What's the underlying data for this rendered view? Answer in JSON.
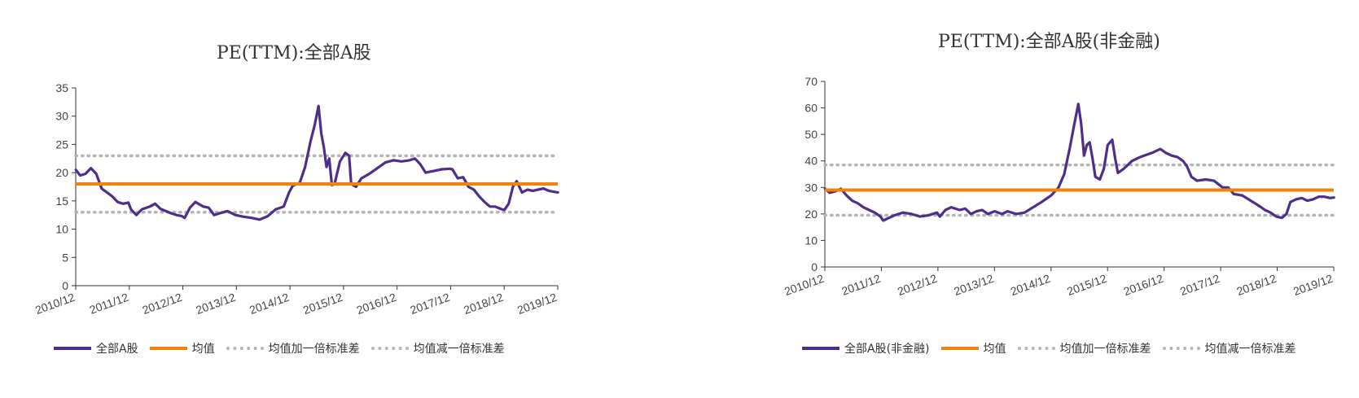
{
  "colors": {
    "series": "#4f2d8a",
    "mean": "#f0820f",
    "band": "#b4b4b4",
    "axis": "#333333"
  },
  "chart_data": [
    {
      "type": "line",
      "title": "PE(TTM):全部A股",
      "x_categories": [
        "2010/12",
        "2011/12",
        "2012/12",
        "2013/12",
        "2014/12",
        "2015/12",
        "2016/12",
        "2017/12",
        "2018/12",
        "2019/12"
      ],
      "x_range": [
        2010.917,
        2019.917
      ],
      "ylim": [
        0,
        35
      ],
      "yticks": [
        "0",
        "5",
        "10",
        "15",
        "20",
        "25",
        "30",
        "35"
      ],
      "mean": 18,
      "upper_band": 23,
      "lower_band": 13,
      "legend": [
        "全部A股",
        "均值",
        "均值加一倍标准差",
        "均值减一倍标准差"
      ],
      "series": [
        {
          "name": "全部A股",
          "points": [
            [
              2010.92,
              20.5
            ],
            [
              2011.0,
              19.5
            ],
            [
              2011.1,
              19.8
            ],
            [
              2011.2,
              20.8
            ],
            [
              2011.3,
              19.8
            ],
            [
              2011.4,
              17.2
            ],
            [
              2011.5,
              16.5
            ],
            [
              2011.6,
              15.8
            ],
            [
              2011.7,
              14.8
            ],
            [
              2011.8,
              14.5
            ],
            [
              2011.9,
              14.7
            ],
            [
              2011.95,
              13.5
            ],
            [
              2012.05,
              12.5
            ],
            [
              2012.15,
              13.5
            ],
            [
              2012.3,
              14.0
            ],
            [
              2012.4,
              14.5
            ],
            [
              2012.5,
              13.6
            ],
            [
              2012.6,
              13.2
            ],
            [
              2012.7,
              12.8
            ],
            [
              2012.8,
              12.5
            ],
            [
              2012.9,
              12.3
            ],
            [
              2012.95,
              12.0
            ],
            [
              2013.05,
              13.8
            ],
            [
              2013.15,
              14.8
            ],
            [
              2013.3,
              14.0
            ],
            [
              2013.4,
              13.8
            ],
            [
              2013.5,
              12.5
            ],
            [
              2013.6,
              12.8
            ],
            [
              2013.75,
              13.2
            ],
            [
              2013.9,
              12.5
            ],
            [
              2014.05,
              12.2
            ],
            [
              2014.2,
              12.0
            ],
            [
              2014.35,
              11.7
            ],
            [
              2014.5,
              12.3
            ],
            [
              2014.65,
              13.5
            ],
            [
              2014.8,
              14.0
            ],
            [
              2014.9,
              16.5
            ],
            [
              2014.97,
              17.7
            ],
            [
              2015.1,
              18.2
            ],
            [
              2015.2,
              21.0
            ],
            [
              2015.3,
              25.5
            ],
            [
              2015.38,
              28.5
            ],
            [
              2015.45,
              31.8
            ],
            [
              2015.5,
              27.0
            ],
            [
              2015.55,
              24.5
            ],
            [
              2015.6,
              21.0
            ],
            [
              2015.65,
              22.5
            ],
            [
              2015.7,
              17.8
            ],
            [
              2015.75,
              18.0
            ],
            [
              2015.85,
              22.0
            ],
            [
              2015.95,
              23.5
            ],
            [
              2016.02,
              23.0
            ],
            [
              2016.06,
              18.0
            ],
            [
              2016.15,
              17.5
            ],
            [
              2016.25,
              19.0
            ],
            [
              2016.4,
              19.8
            ],
            [
              2016.55,
              20.8
            ],
            [
              2016.7,
              21.8
            ],
            [
              2016.85,
              22.2
            ],
            [
              2017.0,
              22.0
            ],
            [
              2017.15,
              22.2
            ],
            [
              2017.25,
              22.5
            ],
            [
              2017.35,
              21.5
            ],
            [
              2017.45,
              20.0
            ],
            [
              2017.6,
              20.3
            ],
            [
              2017.75,
              20.6
            ],
            [
              2017.9,
              20.7
            ],
            [
              2017.95,
              20.6
            ],
            [
              2018.05,
              19.0
            ],
            [
              2018.15,
              19.2
            ],
            [
              2018.25,
              17.5
            ],
            [
              2018.35,
              17.0
            ],
            [
              2018.45,
              15.8
            ],
            [
              2018.55,
              14.8
            ],
            [
              2018.65,
              14.0
            ],
            [
              2018.75,
              14.0
            ],
            [
              2018.85,
              13.6
            ],
            [
              2018.92,
              13.4
            ],
            [
              2019.0,
              14.5
            ],
            [
              2019.08,
              17.5
            ],
            [
              2019.15,
              18.5
            ],
            [
              2019.25,
              16.5
            ],
            [
              2019.35,
              17.0
            ],
            [
              2019.45,
              16.8
            ],
            [
              2019.55,
              17.0
            ],
            [
              2019.65,
              17.2
            ],
            [
              2019.75,
              16.8
            ],
            [
              2019.85,
              16.6
            ],
            [
              2019.92,
              16.5
            ]
          ]
        }
      ]
    },
    {
      "type": "line",
      "title": "PE(TTM):全部A股(非金融)",
      "x_categories": [
        "2010/12",
        "2011/12",
        "2012/12",
        "2013/12",
        "2014/12",
        "2015/12",
        "2016/12",
        "2017/12",
        "2018/12",
        "2019/12"
      ],
      "x_range": [
        2010.917,
        2019.917
      ],
      "ylim": [
        0,
        70
      ],
      "yticks": [
        "0",
        "10",
        "20",
        "30",
        "40",
        "50",
        "60",
        "70"
      ],
      "mean": 29,
      "upper_band": 38.5,
      "lower_band": 19.5,
      "legend": [
        "全部A股(非金融)",
        "均值",
        "均值加一倍标准差",
        "均值减一倍标准差"
      ],
      "series": [
        {
          "name": "全部A股(非金融)",
          "points": [
            [
              2010.92,
              29.5
            ],
            [
              2011.0,
              28.0
            ],
            [
              2011.1,
              28.5
            ],
            [
              2011.2,
              29.5
            ],
            [
              2011.3,
              27.0
            ],
            [
              2011.4,
              25.0
            ],
            [
              2011.5,
              24.0
            ],
            [
              2011.6,
              22.5
            ],
            [
              2011.7,
              21.5
            ],
            [
              2011.8,
              20.5
            ],
            [
              2011.9,
              19.0
            ],
            [
              2011.95,
              17.5
            ],
            [
              2012.05,
              18.5
            ],
            [
              2012.15,
              19.5
            ],
            [
              2012.3,
              20.5
            ],
            [
              2012.45,
              20.0
            ],
            [
              2012.6,
              19.0
            ],
            [
              2012.75,
              19.5
            ],
            [
              2012.9,
              20.5
            ],
            [
              2012.95,
              19.0
            ],
            [
              2013.05,
              21.5
            ],
            [
              2013.15,
              22.5
            ],
            [
              2013.3,
              21.5
            ],
            [
              2013.4,
              22.0
            ],
            [
              2013.5,
              20.0
            ],
            [
              2013.6,
              21.0
            ],
            [
              2013.7,
              21.5
            ],
            [
              2013.8,
              20.0
            ],
            [
              2013.92,
              21.0
            ],
            [
              2014.05,
              20.0
            ],
            [
              2014.15,
              21.0
            ],
            [
              2014.3,
              20.0
            ],
            [
              2014.45,
              20.5
            ],
            [
              2014.6,
              22.5
            ],
            [
              2014.75,
              24.5
            ],
            [
              2014.92,
              27.0
            ],
            [
              2015.05,
              30.0
            ],
            [
              2015.15,
              35.0
            ],
            [
              2015.25,
              45.0
            ],
            [
              2015.32,
              53.0
            ],
            [
              2015.4,
              61.5
            ],
            [
              2015.45,
              54.0
            ],
            [
              2015.5,
              42.0
            ],
            [
              2015.55,
              46.0
            ],
            [
              2015.6,
              47.0
            ],
            [
              2015.65,
              41.0
            ],
            [
              2015.7,
              34.0
            ],
            [
              2015.78,
              33.0
            ],
            [
              2015.85,
              37.0
            ],
            [
              2015.92,
              46.0
            ],
            [
              2016.0,
              48.0
            ],
            [
              2016.05,
              41.0
            ],
            [
              2016.1,
              35.5
            ],
            [
              2016.2,
              37.0
            ],
            [
              2016.35,
              40.0
            ],
            [
              2016.5,
              41.5
            ],
            [
              2016.7,
              43.0
            ],
            [
              2016.85,
              44.5
            ],
            [
              2016.95,
              43.0
            ],
            [
              2017.05,
              42.0
            ],
            [
              2017.15,
              41.5
            ],
            [
              2017.25,
              40.0
            ],
            [
              2017.32,
              38.0
            ],
            [
              2017.4,
              34.0
            ],
            [
              2017.5,
              32.5
            ],
            [
              2017.65,
              33.0
            ],
            [
              2017.8,
              32.5
            ],
            [
              2017.95,
              30.0
            ],
            [
              2018.05,
              30.0
            ],
            [
              2018.15,
              27.5
            ],
            [
              2018.3,
              27.0
            ],
            [
              2018.45,
              25.0
            ],
            [
              2018.6,
              23.0
            ],
            [
              2018.7,
              21.5
            ],
            [
              2018.8,
              20.5
            ],
            [
              2018.9,
              19.0
            ],
            [
              2019.0,
              18.5
            ],
            [
              2019.08,
              20.0
            ],
            [
              2019.15,
              24.5
            ],
            [
              2019.25,
              25.5
            ],
            [
              2019.35,
              26.0
            ],
            [
              2019.45,
              25.0
            ],
            [
              2019.55,
              25.5
            ],
            [
              2019.65,
              26.5
            ],
            [
              2019.75,
              26.5
            ],
            [
              2019.85,
              26.0
            ],
            [
              2019.92,
              26.2
            ]
          ]
        }
      ]
    }
  ]
}
